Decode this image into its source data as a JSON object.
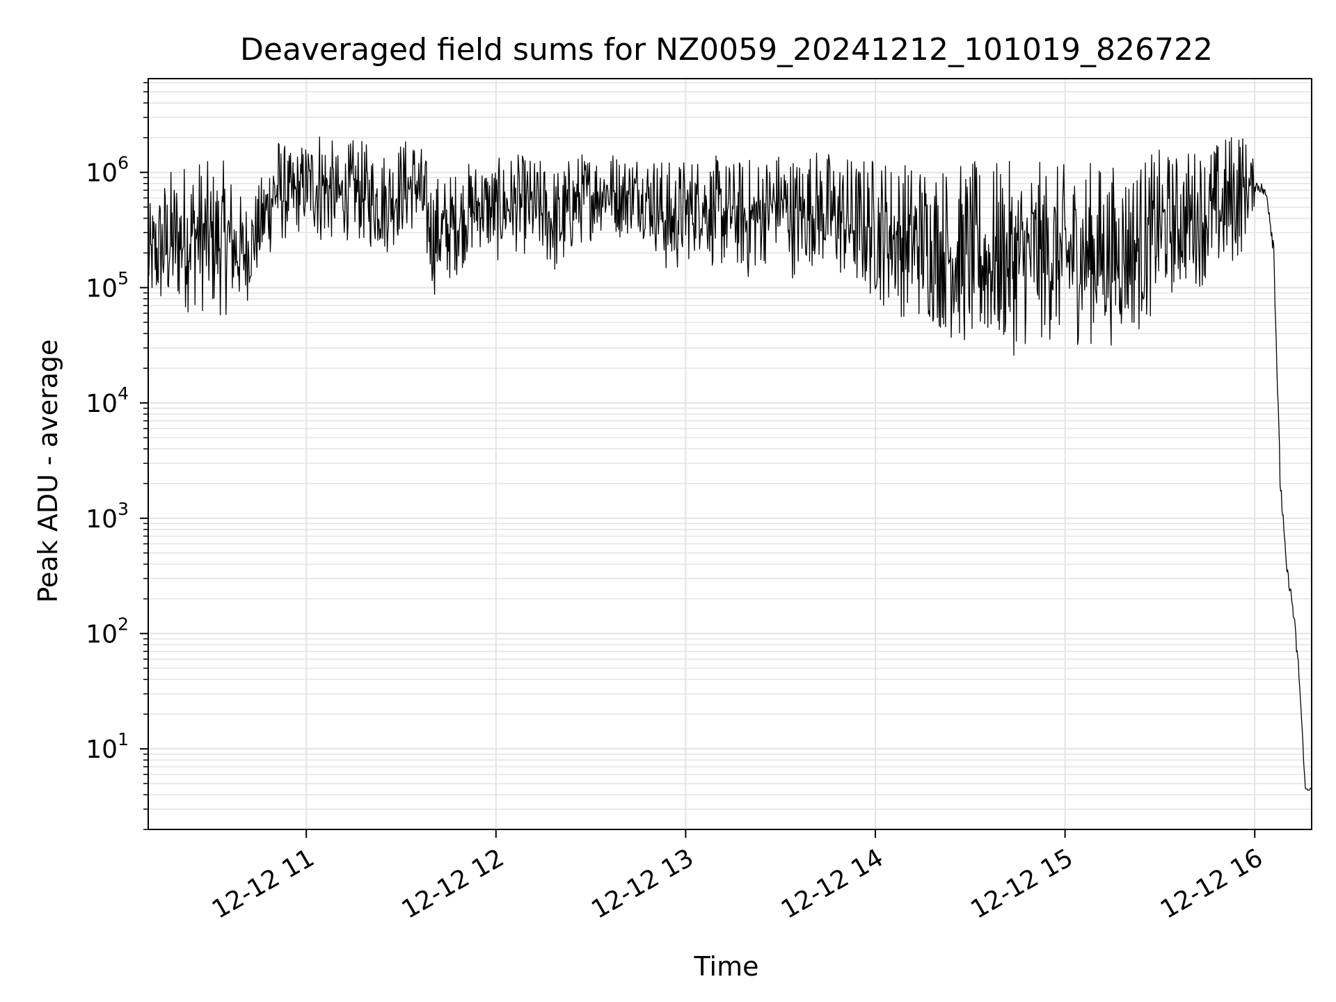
{
  "chart_data": {
    "type": "line",
    "title": "Deaveraged field sums for NZ0059_20241212_101019_826722",
    "xlabel": "Time",
    "ylabel": "Peak ADU - average",
    "xlim": [
      "12-12 10:10",
      "12-12 16:18"
    ],
    "ylim": [
      2,
      6500000
    ],
    "yscale": "log",
    "grid": true,
    "line_color": "#000000",
    "grid_color": "#e3e3e3",
    "x_ticks": [
      {
        "time": "12-12 11:00",
        "label": "12-12 11"
      },
      {
        "time": "12-12 12:00",
        "label": "12-12 12"
      },
      {
        "time": "12-12 13:00",
        "label": "12-12 13"
      },
      {
        "time": "12-12 14:00",
        "label": "12-12 14"
      },
      {
        "time": "12-12 15:00",
        "label": "12-12 15"
      },
      {
        "time": "12-12 16:00",
        "label": "12-12 16"
      }
    ],
    "y_ticks": [
      {
        "value": 10,
        "base": "10",
        "exp": "1"
      },
      {
        "value": 100,
        "base": "10",
        "exp": "2"
      },
      {
        "value": 1000,
        "base": "10",
        "exp": "3"
      },
      {
        "value": 10000,
        "base": "10",
        "exp": "4"
      },
      {
        "value": 100000,
        "base": "10",
        "exp": "5"
      },
      {
        "value": 1000000,
        "base": "10",
        "exp": "6"
      }
    ],
    "series": [
      {
        "x": [
          "12-12 10:10",
          "12-12 10:15",
          "12-12 10:20",
          "12-12 10:25",
          "12-12 10:30",
          "12-12 10:35",
          "12-12 10:40",
          "12-12 10:45",
          "12-12 10:50",
          "12-12 10:55",
          "12-12 11:00",
          "12-12 11:05",
          "12-12 11:10",
          "12-12 11:15",
          "12-12 11:20",
          "12-12 11:25",
          "12-12 11:30",
          "12-12 11:35",
          "12-12 11:40",
          "12-12 11:45",
          "12-12 11:50",
          "12-12 11:55",
          "12-12 12:00",
          "12-12 12:05",
          "12-12 12:10",
          "12-12 12:15",
          "12-12 12:20",
          "12-12 12:25",
          "12-12 12:30",
          "12-12 12:35",
          "12-12 12:40",
          "12-12 12:45",
          "12-12 12:50",
          "12-12 12:55",
          "12-12 13:00",
          "12-12 13:05",
          "12-12 13:10",
          "12-12 13:15",
          "12-12 13:20",
          "12-12 13:25",
          "12-12 13:30",
          "12-12 13:35",
          "12-12 13:40",
          "12-12 13:45",
          "12-12 13:50",
          "12-12 13:55",
          "12-12 14:00",
          "12-12 14:05",
          "12-12 14:10",
          "12-12 14:15",
          "12-12 14:20",
          "12-12 14:25",
          "12-12 14:30",
          "12-12 14:35",
          "12-12 14:40",
          "12-12 14:45",
          "12-12 14:50",
          "12-12 14:55",
          "12-12 15:00",
          "12-12 15:05",
          "12-12 15:10",
          "12-12 15:15",
          "12-12 15:20",
          "12-12 15:25",
          "12-12 15:30",
          "12-12 15:35",
          "12-12 15:40",
          "12-12 15:45",
          "12-12 15:50",
          "12-12 15:55",
          "12-12 16:00",
          "12-12 16:02",
          "12-12 16:04",
          "12-12 16:06",
          "12-12 16:08",
          "12-12 16:10",
          "12-12 16:12",
          "12-12 16:14",
          "12-12 16:16",
          "12-12 16:18"
        ],
        "y_low": [
          60000,
          50000,
          55000,
          60000,
          50000,
          55000,
          60000,
          120000,
          200000,
          250000,
          300000,
          200000,
          250000,
          250000,
          200000,
          180000,
          250000,
          300000,
          80000,
          100000,
          150000,
          200000,
          150000,
          200000,
          180000,
          150000,
          100000,
          200000,
          250000,
          300000,
          250000,
          300000,
          200000,
          100000,
          150000,
          200000,
          120000,
          150000,
          100000,
          150000,
          200000,
          100000,
          150000,
          120000,
          100000,
          80000,
          70000,
          60000,
          50000,
          45000,
          40000,
          30000,
          25000,
          25000,
          25000,
          25000,
          30000,
          30000,
          30000,
          30000,
          30000,
          30000,
          35000,
          40000,
          70000,
          80000,
          100000,
          100000,
          120000,
          150000,
          500000,
          500000,
          400000,
          100000,
          1000,
          300,
          100,
          25,
          4,
          4
        ],
        "y_high": [
          500000,
          1000000,
          1300000,
          1500000,
          1200000,
          1300000,
          600000,
          800000,
          2500000,
          1500000,
          2000000,
          3000000,
          1500000,
          2000000,
          1800000,
          1700000,
          2000000,
          2200000,
          1000000,
          1000000,
          1200000,
          1400000,
          1300000,
          1500000,
          1400000,
          1300000,
          1200000,
          1500000,
          1600000,
          1700000,
          1500000,
          1600000,
          1500000,
          1300000,
          1400000,
          1500000,
          1400000,
          1300000,
          1400000,
          1500000,
          1600000,
          1500000,
          1700000,
          1600000,
          1500000,
          1400000,
          1500000,
          1400000,
          1300000,
          1400000,
          1300000,
          1200000,
          1300000,
          1200000,
          1300000,
          1200000,
          1300000,
          1200000,
          1200000,
          1300000,
          1300000,
          1200000,
          1300000,
          1400000,
          1600000,
          1500000,
          1700000,
          1800000,
          2000000,
          3000000,
          1200000,
          1100000,
          900000,
          500000,
          5000,
          500,
          300,
          80,
          5,
          5
        ]
      }
    ]
  }
}
